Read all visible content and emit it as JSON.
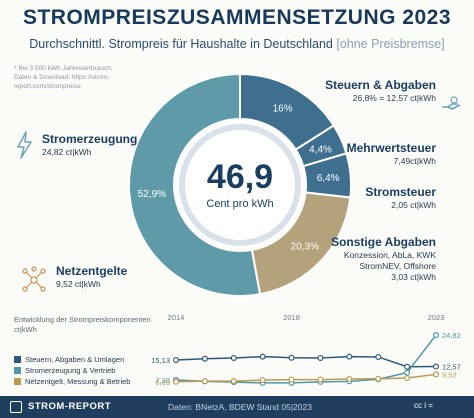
{
  "title": "STROMPREISZUSAMMENSETZUNG 2023",
  "subtitle": "Durchschnittl. Strompreis für Haushalte in Deutschland",
  "subtitle_bracket": "[ohne Preisbremse]",
  "note": "* Bei 3.500 kWh Jahresverbrauch,\nDaten & Download: https://strom-report.com/strompreise",
  "center": {
    "value": "46,9",
    "unit": "Cent pro kWh"
  },
  "colors": {
    "stromerzeugung": "#5e9aa7",
    "steuern": "#3f6f8f",
    "netz": "#b3a27b",
    "lines_steuern": "#2e5878",
    "lines_strom": "#4e97a6",
    "lines_netz": "#b99a50"
  },
  "labels": {
    "steuern_title": "Steuern & Abgaben",
    "steuern_value": "26,8% = 12,57 ct|kWh",
    "mwst_title": "Mehrwertsteuer",
    "mwst_value": "7,49ct|kWh",
    "stromsteuer_title": "Stromsteuer",
    "stromsteuer_value": "2,05 ct|kWh",
    "sonstige_title": "Sonstige Abgaben",
    "sonstige_value": "Konzession, AbLa, KWK\nStromNEV, Offshore\n3,03 ct|kWh",
    "strom_title": "Stromerzeugung",
    "strom_value": "24,82 ct|kWh",
    "netz_title": "Netzentgelte",
    "netz_value": "9,52 ct|kWh"
  },
  "chart_data": [
    {
      "type": "pie",
      "slices": [
        {
          "name": "Stromerzeugung",
          "value": 52.9,
          "label": "52,9%"
        },
        {
          "name": "Mehrwertsteuer",
          "value": 16.0,
          "label": "16%"
        },
        {
          "name": "Stromsteuer",
          "value": 4.4,
          "label": "4,4%"
        },
        {
          "name": "Sonstige Abgaben",
          "value": 6.4,
          "label": "6,4%"
        },
        {
          "name": "Netzentgelte",
          "value": 20.3,
          "label": "20,3%"
        }
      ]
    },
    {
      "type": "line",
      "title": "Entwicklung der Strompreiskomponenten ct|kWh",
      "x": [
        2014,
        2015,
        2016,
        2017,
        2018,
        2019,
        2020,
        2021,
        2022,
        2023
      ],
      "xticks": [
        "2014",
        "2018",
        "2023"
      ],
      "series": [
        {
          "name": "Steuern, Abgaben & Umlagen",
          "values": [
            15.13,
            15.6,
            15.9,
            16.4,
            16.0,
            15.9,
            16.4,
            16.3,
            12.5,
            12.57
          ],
          "start_label": "15,13",
          "end_label": "12,57"
        },
        {
          "name": "Stromerzeugung & Vertrieb",
          "values": [
            7.38,
            6.8,
            6.5,
            6.2,
            6.2,
            6.6,
            6.8,
            7.6,
            10.2,
            24.82
          ],
          "start_label": "7,38",
          "end_label": "24,82"
        },
        {
          "name": "Netzentgelt, Messung & Betrieb",
          "values": [
            6.63,
            6.9,
            6.9,
            7.3,
            7.5,
            7.5,
            7.7,
            7.8,
            8.1,
            9.52
          ],
          "start_label": "6,63",
          "end_label": "9,52"
        }
      ]
    }
  ],
  "footer": {
    "brand": "STROM-REPORT",
    "source": "Daten: BNetzA, BDEW   Stand 05|2023",
    "license": "cc  i  ="
  }
}
